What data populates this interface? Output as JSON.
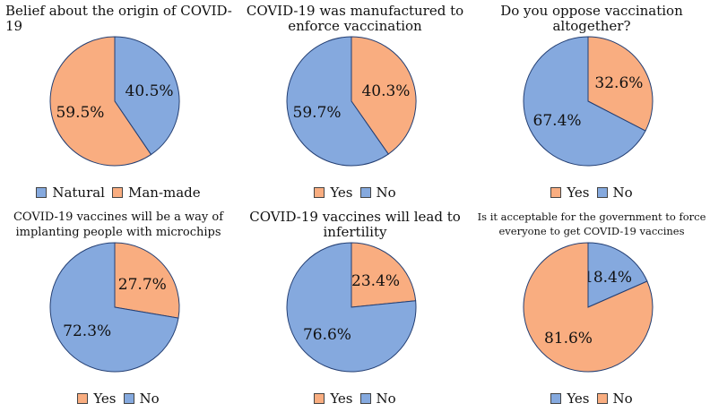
{
  "colors": {
    "blue": "#85A9DE",
    "orange": "#F9AD80",
    "edge": "#243F73"
  },
  "chart_data": [
    {
      "type": "pie",
      "title": "Belief about the origin of COVID-\n19",
      "slices": [
        {
          "name": "Natural",
          "value": 40.5,
          "label": "40.5%",
          "color": "#85A9DE"
        },
        {
          "name": "Man-made",
          "value": 59.5,
          "label": "59.5%",
          "color": "#F9AD80"
        }
      ],
      "legend": [
        {
          "name": "Natural",
          "color": "#85A9DE"
        },
        {
          "name": "Man-made",
          "color": "#F9AD80"
        }
      ],
      "legend_position": "bottom"
    },
    {
      "type": "pie",
      "title": "COVID-19 was manufactured to\nenforce vaccination",
      "slices": [
        {
          "name": "Yes",
          "value": 40.3,
          "label": "40.3%",
          "color": "#F9AD80"
        },
        {
          "name": "No",
          "value": 59.7,
          "label": "59.7%",
          "color": "#85A9DE"
        }
      ],
      "legend": [
        {
          "name": "Yes",
          "color": "#F9AD80"
        },
        {
          "name": "No",
          "color": "#85A9DE"
        }
      ],
      "legend_position": "bottom"
    },
    {
      "type": "pie",
      "title": "Do you oppose vaccination\naltogether?",
      "slices": [
        {
          "name": "Yes",
          "value": 32.6,
          "label": "32.6%",
          "color": "#F9AD80"
        },
        {
          "name": "No",
          "value": 67.4,
          "label": "67.4%",
          "color": "#85A9DE"
        }
      ],
      "legend": [
        {
          "name": "Yes",
          "color": "#F9AD80"
        },
        {
          "name": "No",
          "color": "#85A9DE"
        }
      ],
      "legend_position": "bottom"
    },
    {
      "type": "pie",
      "title": "COVID-19 vaccines will be a way of\nimplanting people with microchips",
      "slices": [
        {
          "name": "Yes",
          "value": 27.7,
          "label": "27.7%",
          "color": "#F9AD80"
        },
        {
          "name": "No",
          "value": 72.3,
          "label": "72.3%",
          "color": "#85A9DE"
        }
      ],
      "legend": [
        {
          "name": "Yes",
          "color": "#F9AD80"
        },
        {
          "name": "No",
          "color": "#85A9DE"
        }
      ],
      "legend_position": "bottom"
    },
    {
      "type": "pie",
      "title": "COVID-19 vaccines will lead to\ninfertility",
      "slices": [
        {
          "name": "Yes",
          "value": 23.4,
          "label": "23.4%",
          "color": "#F9AD80"
        },
        {
          "name": "No",
          "value": 76.6,
          "label": "76.6%",
          "color": "#85A9DE"
        }
      ],
      "legend": [
        {
          "name": "Yes",
          "color": "#F9AD80"
        },
        {
          "name": "No",
          "color": "#85A9DE"
        }
      ],
      "legend_position": "bottom"
    },
    {
      "type": "pie",
      "title": "Is it acceptable for the government to force\neveryone to get COVID-19 vaccines",
      "slices": [
        {
          "name": "Yes",
          "value": 18.4,
          "label": "18.4%",
          "color": "#85A9DE"
        },
        {
          "name": "No",
          "value": 81.6,
          "label": "81.6%",
          "color": "#F9AD80"
        }
      ],
      "legend": [
        {
          "name": "Yes",
          "color": "#85A9DE"
        },
        {
          "name": "No",
          "color": "#F9AD80"
        }
      ],
      "legend_position": "bottom"
    }
  ]
}
